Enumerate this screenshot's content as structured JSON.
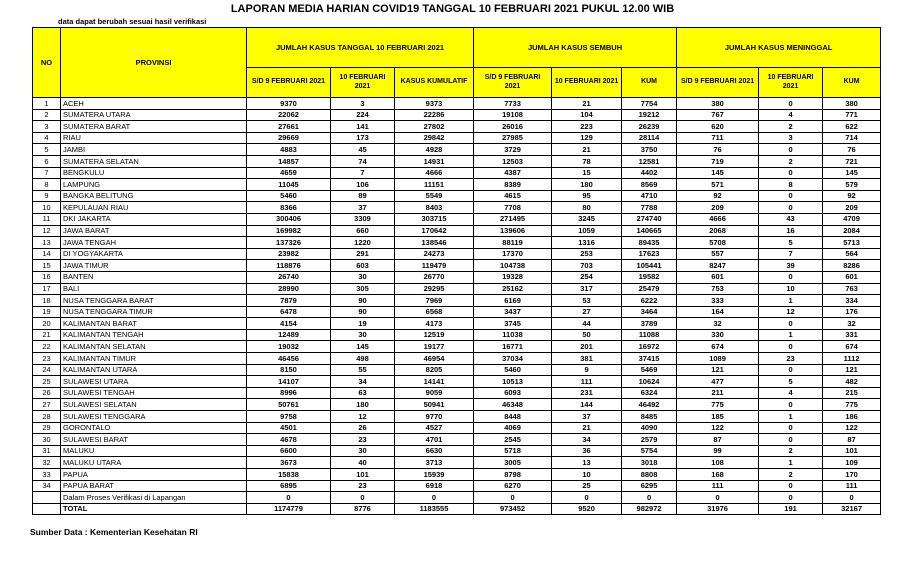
{
  "title": "LAPORAN MEDIA HARIAN COVID19 TANGGAL 10 FEBRUARI 2021 PUKUL 12.00 WIB",
  "note": "data dapat berubah sesuai hasil verifikasi",
  "source": "Sumber Data : Kementerian Kesehatan RI",
  "colors": {
    "header_bg": "#FFFF00",
    "border": "#000000",
    "text": "#000000"
  },
  "table": {
    "header": {
      "no": "NO",
      "provinsi": "PROVINSI",
      "group_cases": "JUMLAH KASUS TANGGAL 10 FEBRUARI 2021",
      "group_recovered": "JUMLAH KASUS SEMBUH",
      "group_deaths": "JUMLAH KASUS MENINGGAL",
      "sub_cases": [
        "S/D 9 FEBRUARI 2021",
        "10 FEBRUARI 2021",
        "KASUS KUMULATIF"
      ],
      "sub_recovered": [
        "S/D 9 FEBRUARI 2021",
        "10 FEBRUARI 2021",
        "KUM"
      ],
      "sub_deaths": [
        "S/D 9 FEBRUARI 2021",
        "10 FEBRUARI 2021",
        "KUM"
      ]
    },
    "rows": [
      [
        "1",
        "ACEH",
        "9370",
        "3",
        "9373",
        "7733",
        "21",
        "7754",
        "380",
        "0",
        "380"
      ],
      [
        "2",
        "SUMATERA UTARA",
        "22062",
        "224",
        "22286",
        "19108",
        "104",
        "19212",
        "767",
        "4",
        "771"
      ],
      [
        "3",
        "SUMATERA BARAT",
        "27661",
        "141",
        "27802",
        "26016",
        "223",
        "26239",
        "620",
        "2",
        "622"
      ],
      [
        "4",
        "RIAU",
        "29669",
        "173",
        "29842",
        "27985",
        "129",
        "28114",
        "711",
        "3",
        "714"
      ],
      [
        "5",
        "JAMBI",
        "4883",
        "45",
        "4928",
        "3729",
        "21",
        "3750",
        "76",
        "0",
        "76"
      ],
      [
        "6",
        "SUMATERA SELATAN",
        "14857",
        "74",
        "14931",
        "12503",
        "78",
        "12581",
        "719",
        "2",
        "721"
      ],
      [
        "7",
        "BENGKULU",
        "4659",
        "7",
        "4666",
        "4387",
        "15",
        "4402",
        "145",
        "0",
        "145"
      ],
      [
        "8",
        "LAMPUNG",
        "11045",
        "106",
        "11151",
        "8389",
        "180",
        "8569",
        "571",
        "8",
        "579"
      ],
      [
        "9",
        "BANGKA BELITUNG",
        "5460",
        "89",
        "5549",
        "4615",
        "95",
        "4710",
        "92",
        "0",
        "92"
      ],
      [
        "10",
        "KEPULAUAN RIAU",
        "8366",
        "37",
        "8403",
        "7708",
        "80",
        "7788",
        "209",
        "0",
        "209"
      ],
      [
        "11",
        "DKI JAKARTA",
        "300406",
        "3309",
        "303715",
        "271495",
        "3245",
        "274740",
        "4666",
        "43",
        "4709"
      ],
      [
        "12",
        "JAWA BARAT",
        "169982",
        "660",
        "170642",
        "139606",
        "1059",
        "140665",
        "2068",
        "16",
        "2084"
      ],
      [
        "13",
        "JAWA TENGAH",
        "137326",
        "1220",
        "138546",
        "88119",
        "1316",
        "89435",
        "5708",
        "5",
        "5713"
      ],
      [
        "14",
        "DI YOGYAKARTA",
        "23982",
        "291",
        "24273",
        "17370",
        "253",
        "17623",
        "557",
        "7",
        "564"
      ],
      [
        "15",
        "JAWA TIMUR",
        "118876",
        "603",
        "119479",
        "104738",
        "703",
        "105441",
        "8247",
        "39",
        "8286"
      ],
      [
        "16",
        "BANTEN",
        "26740",
        "30",
        "26770",
        "19328",
        "254",
        "19582",
        "601",
        "0",
        "601"
      ],
      [
        "17",
        "BALI",
        "28990",
        "305",
        "29295",
        "25162",
        "317",
        "25479",
        "753",
        "10",
        "763"
      ],
      [
        "18",
        "NUSA TENGGARA BARAT",
        "7879",
        "90",
        "7969",
        "6169",
        "53",
        "6222",
        "333",
        "1",
        "334"
      ],
      [
        "19",
        "NUSA TENGGARA TIMUR",
        "6478",
        "90",
        "6568",
        "3437",
        "27",
        "3464",
        "164",
        "12",
        "176"
      ],
      [
        "20",
        "KALIMANTAN BARAT",
        "4154",
        "19",
        "4173",
        "3745",
        "44",
        "3789",
        "32",
        "0",
        "32"
      ],
      [
        "21",
        "KALIMANTAN TENGAH",
        "12489",
        "30",
        "12519",
        "11038",
        "50",
        "11088",
        "330",
        "1",
        "331"
      ],
      [
        "22",
        "KALIMANTAN SELATAN",
        "19032",
        "145",
        "19177",
        "16771",
        "201",
        "16972",
        "674",
        "0",
        "674"
      ],
      [
        "23",
        "KALIMANTAN TIMUR",
        "46456",
        "498",
        "46954",
        "37034",
        "381",
        "37415",
        "1089",
        "23",
        "1112"
      ],
      [
        "24",
        "KALIMANTAN UTARA",
        "8150",
        "55",
        "8205",
        "5460",
        "9",
        "5469",
        "121",
        "0",
        "121"
      ],
      [
        "25",
        "SULAWESI UTARA",
        "14107",
        "34",
        "14141",
        "10513",
        "111",
        "10624",
        "477",
        "5",
        "482"
      ],
      [
        "26",
        "SULAWESI TENGAH",
        "8996",
        "63",
        "9059",
        "6093",
        "231",
        "6324",
        "211",
        "4",
        "215"
      ],
      [
        "27",
        "SULAWESI SELATAN",
        "50761",
        "180",
        "50941",
        "46348",
        "144",
        "46492",
        "775",
        "0",
        "775"
      ],
      [
        "28",
        "SULAWESI TENGGARA",
        "9758",
        "12",
        "9770",
        "8448",
        "37",
        "8485",
        "185",
        "1",
        "186"
      ],
      [
        "29",
        "GORONTALO",
        "4501",
        "26",
        "4527",
        "4069",
        "21",
        "4090",
        "122",
        "0",
        "122"
      ],
      [
        "30",
        "SULAWESI BARAT",
        "4678",
        "23",
        "4701",
        "2545",
        "34",
        "2579",
        "87",
        "0",
        "87"
      ],
      [
        "31",
        "MALUKU",
        "6600",
        "30",
        "6630",
        "5718",
        "36",
        "5754",
        "99",
        "2",
        "101"
      ],
      [
        "32",
        "MALUKU UTARA",
        "3673",
        "40",
        "3713",
        "3005",
        "13",
        "3018",
        "108",
        "1",
        "109"
      ],
      [
        "33",
        "PAPUA",
        "15838",
        "101",
        "15939",
        "8798",
        "10",
        "8808",
        "168",
        "2",
        "170"
      ],
      [
        "34",
        "PAPUA BARAT",
        "6895",
        "23",
        "6918",
        "6270",
        "25",
        "6295",
        "111",
        "0",
        "111"
      ],
      [
        "",
        "Dalam Proses Verifikasi di Lapangan",
        "0",
        "0",
        "0",
        "0",
        "0",
        "0",
        "0",
        "0",
        "0"
      ],
      [
        "",
        "TOTAL",
        "1174779",
        "8776",
        "1183555",
        "973452",
        "9520",
        "982972",
        "31976",
        "191",
        "32167"
      ]
    ]
  }
}
